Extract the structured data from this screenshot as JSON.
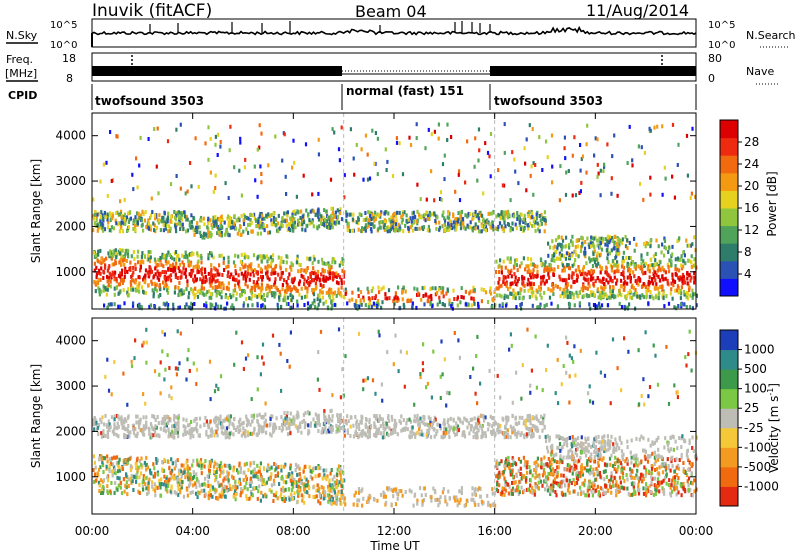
{
  "header": {
    "station": "Inuvik (fitACF)",
    "beam": "Beam 04",
    "date": "11/Aug/2014"
  },
  "noise_panel": {
    "left_label": "N.Sky",
    "right_label": "N.Search",
    "left_ticks": [
      "10^5",
      "10^0"
    ],
    "right_ticks": [
      "10^5",
      "10^0"
    ]
  },
  "freq_panel": {
    "left_label_1": "Freq.",
    "left_label_2": "[MHz]",
    "right_label": "Nave",
    "left_ticks": [
      "18",
      "8"
    ],
    "right_ticks": [
      "80",
      "0"
    ]
  },
  "cpid": {
    "label": "CPID",
    "segments": [
      {
        "name": "twofsound 3503",
        "start_hour": 0,
        "end_hour": 10
      },
      {
        "name": "normal (fast) 151",
        "start_hour": 10,
        "end_hour": 16
      },
      {
        "name": "twofsound 3503",
        "start_hour": 16,
        "end_hour": 24
      }
    ]
  },
  "chart_data": [
    {
      "type": "heatmap",
      "title": "",
      "xlabel": "",
      "ylabel": "Slant Range [km]",
      "xlim": [
        0,
        24
      ],
      "ylim": [
        180,
        4500
      ],
      "yticks": [
        "1000",
        "2000",
        "3000",
        "4000"
      ],
      "colorbar": {
        "label": "Power [dB]",
        "ticks": [
          "4",
          "8",
          "12",
          "16",
          "20",
          "24",
          "28"
        ],
        "colors": [
          "#1010ff",
          "#2a52b5",
          "#2e7d6a",
          "#4fa35a",
          "#8fc63e",
          "#e6d21e",
          "#f39a12",
          "#f26a10",
          "#ee2a10",
          "#dd0000"
        ]
      }
    },
    {
      "type": "heatmap",
      "title": "",
      "xlabel": "Time UT",
      "ylabel": "Slant Range [km]",
      "xlim": [
        0,
        24
      ],
      "ylim": [
        180,
        4500
      ],
      "xticks": [
        "00:00",
        "04:00",
        "08:00",
        "12:00",
        "16:00",
        "20:00",
        "00:00"
      ],
      "yticks": [
        "1000",
        "2000",
        "3000",
        "4000"
      ],
      "colorbar": {
        "label": "Velocity [m s",
        "label_sup": "-1",
        "label_close": "]",
        "ticks": [
          "1000",
          "500",
          "100",
          "25",
          "-25",
          "-100",
          "-500",
          "-1000"
        ],
        "colors": [
          "#1c3eb8",
          "#2f8a8a",
          "#3c9a4a",
          "#7ac843",
          "#bdbdb6",
          "#f5c83a",
          "#f39a20",
          "#f06a10",
          "#e42a10"
        ]
      }
    }
  ]
}
